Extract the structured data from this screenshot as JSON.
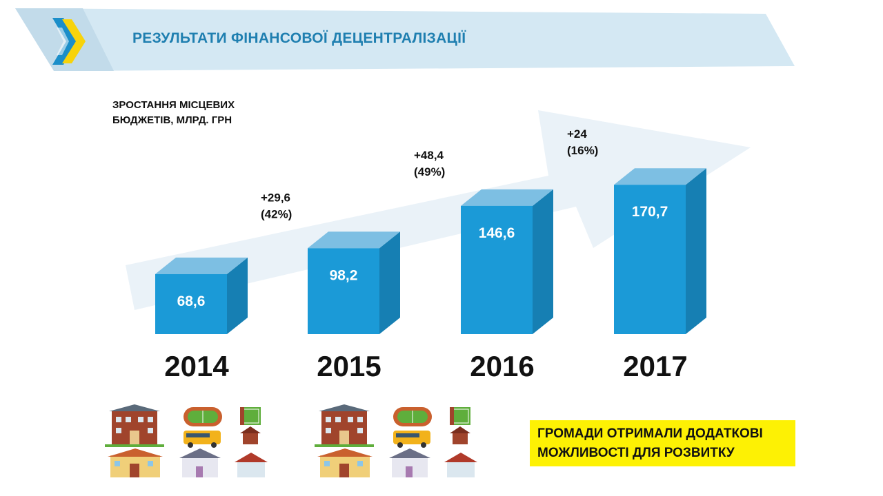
{
  "slide": {
    "title": "РЕЗУЛЬТАТИ ФІНАНСОВОЇ ДЕЦЕНТРАЛІЗАЦІЇ",
    "logo_icon": "chevron-arrows-logo",
    "accent_color": "#1a9ad6",
    "banner_color": "#d4e8f3"
  },
  "chart_data": {
    "type": "bar",
    "ylabel_lines": [
      "ЗРОСТАННЯ МІСЦЕВИХ",
      "БЮДЖЕТІВ, МЛРД. ГРН"
    ],
    "categories": [
      "2014",
      "2015",
      "2016",
      "2017"
    ],
    "values": [
      68.6,
      98.2,
      146.6,
      170.7
    ],
    "value_labels": [
      "68,6",
      "98,2",
      "146,6",
      "170,7"
    ],
    "growth_labels": [
      {
        "amount": "+29,6",
        "percent": "(42%)"
      },
      {
        "amount": "+48,4",
        "percent": "(49%)"
      },
      {
        "amount": "+24",
        "percent": "(16%)"
      }
    ],
    "bar_color": "#1b9ad7",
    "bar_top_color": "#7dbfe3",
    "bar_side_color": "#167fb3",
    "trend_arrow": true,
    "grid": false
  },
  "callout": {
    "lines": [
      "ГРОМАДИ ОТРИМАЛИ ДОДАТКОВІ",
      "МОЖЛИВОСТІ ДЛЯ РОЗВИТКУ"
    ],
    "background": "#fdf104"
  },
  "illustrations": {
    "icons": [
      "school-building-icon",
      "stadium-icon",
      "school-bus-icon",
      "football-field-icon",
      "small-house-icon",
      "kindergarten-icon",
      "clinic-icon",
      "cottage-icon"
    ]
  }
}
